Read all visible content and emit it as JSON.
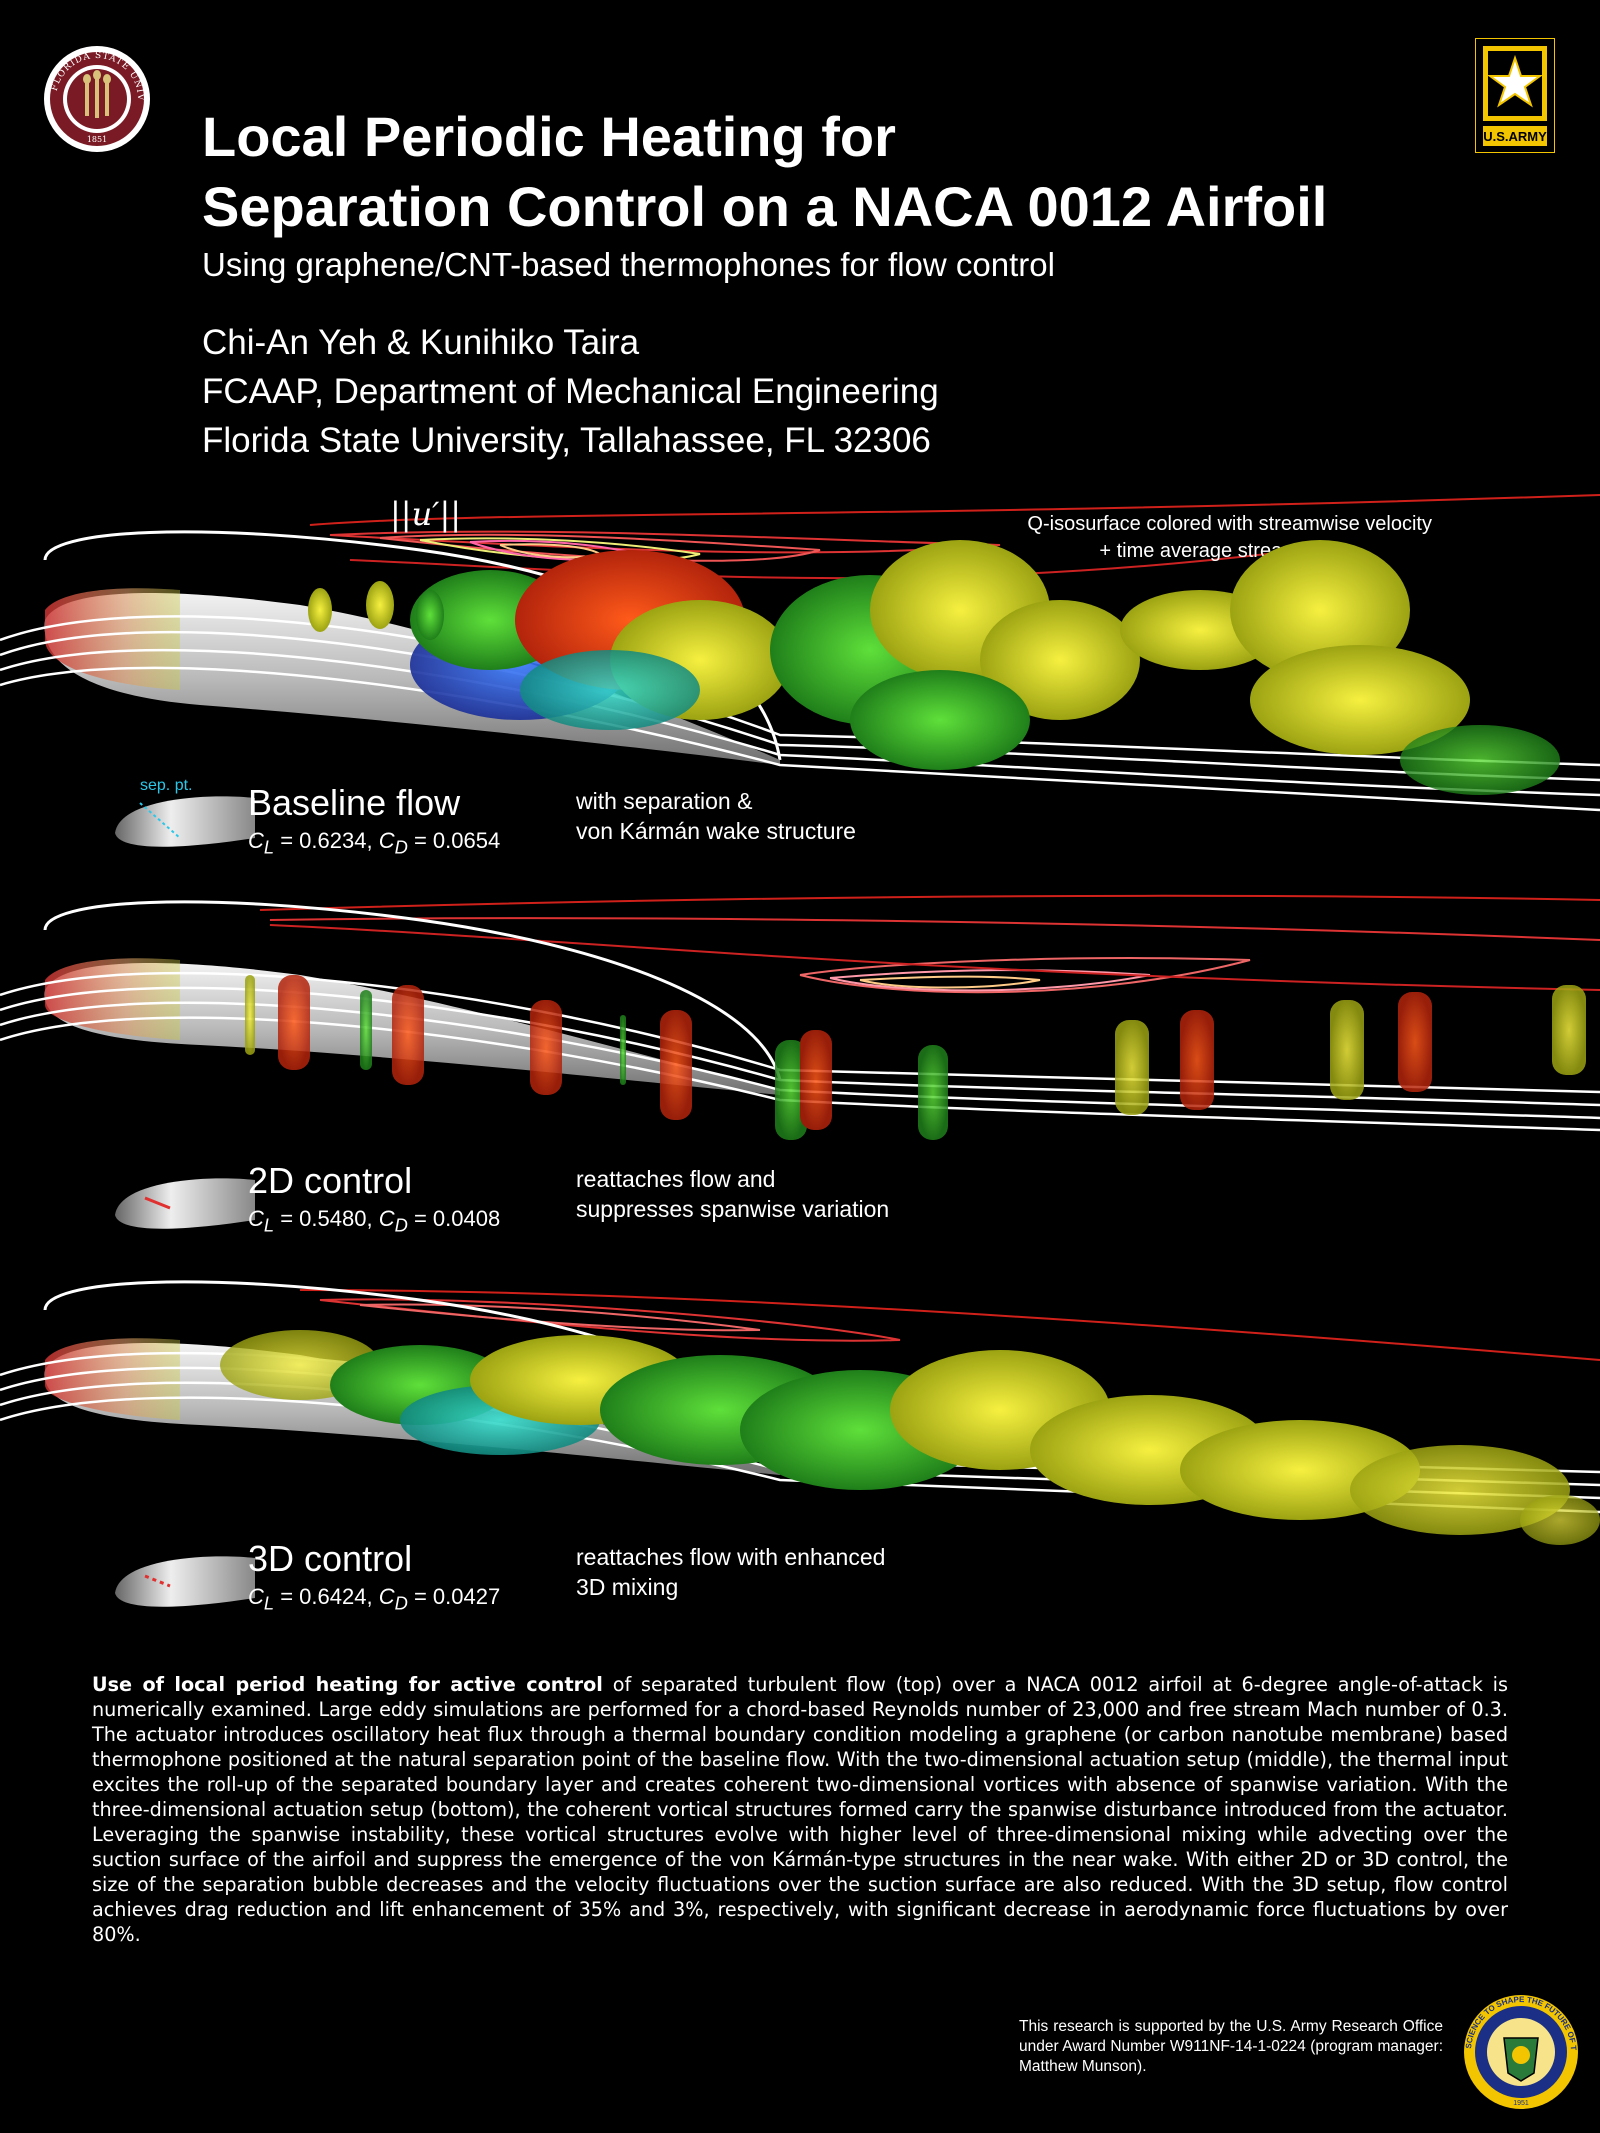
{
  "header": {
    "title_line1": "Local Periodic Heating for",
    "title_line2": "Separation Control on a NACA 0012 Airfoil",
    "subtitle": "Using graphene/CNT-based thermophones for flow control",
    "authors": "Chi-An Yeh & Kunihiko Taira",
    "affiliation1": "FCAAP, Department of Mechanical Engineering",
    "affiliation2": "Florida State University, Tallahassee, FL 32306"
  },
  "logos": {
    "fsu_seal_text": "FLORIDA STATE UNIVERSITY",
    "fsu_year": "1851",
    "army_text": "U.S.ARMY",
    "arl_text": "SCIENCE TO SHAPE THE FUTURE OF THE ARMY",
    "arl_year": "1951"
  },
  "panels": {
    "baseline": {
      "velocity_label": "||u′||",
      "viz_note_line1": "Q-isosurface colored with streamwise velocity",
      "viz_note_line2": "+ time average streamline",
      "sep_label": "sep. pt.",
      "title": "Baseline flow",
      "cl": "0.6234",
      "cd": "0.0654",
      "desc_line1": "with separation &",
      "desc_line2": "von Kármán wake structure"
    },
    "control2d": {
      "title": "2D control",
      "cl": "0.5480",
      "cd": "0.0408",
      "desc_line1": "reattaches flow and",
      "desc_line2": "suppresses spanwise variation"
    },
    "control3d": {
      "title": "3D control",
      "cl": "0.6424",
      "cd": "0.0427",
      "desc_line1": "reattaches flow with enhanced",
      "desc_line2": "3D mixing"
    }
  },
  "abstract": {
    "lead": "Use of local period heating for active control",
    "body": " of separated turbulent flow (top) over a NACA 0012 airfoil at 6-degree angle-of-attack is numerically examined. Large eddy simulations are performed for a chord-based Reynolds number of 23,000 and free stream Mach number of 0.3. The actuator introduces oscillatory heat flux through a thermal boundary condition modeling a graphene (or carbon nanotube membrane) based thermophone positioned at the natural separation point of the baseline flow. With the two-dimensional actuation setup (middle), the thermal input excites the roll-up of the separated boundary layer and creates coherent two-dimensional vortices with absence of spanwise variation.  With the three-dimensional actuation setup (bottom), the coherent vortical structures formed carry the spanwise disturbance introduced from the actuator. Leveraging the spanwise instability, these vortical structures evolve with higher level of three-dimensional mixing while advecting over the suction surface of the airfoil and suppress the emergence of the von Kármán-type structures in the near wake. With either 2D or 3D control, the size of the separation bubble decreases and the velocity fluctuations over the suction surface are also reduced. With the 3D setup, flow control achieves drag reduction and lift enhancement of 35% and 3%, respectively, with significant decrease in aerodynamic force fluctuations by over 80%."
  },
  "acknowledgment": "This research is supported by the U.S. Army Research Office under Award Number W911NF-14-1-0224 (program manager: Matthew Munson)."
}
